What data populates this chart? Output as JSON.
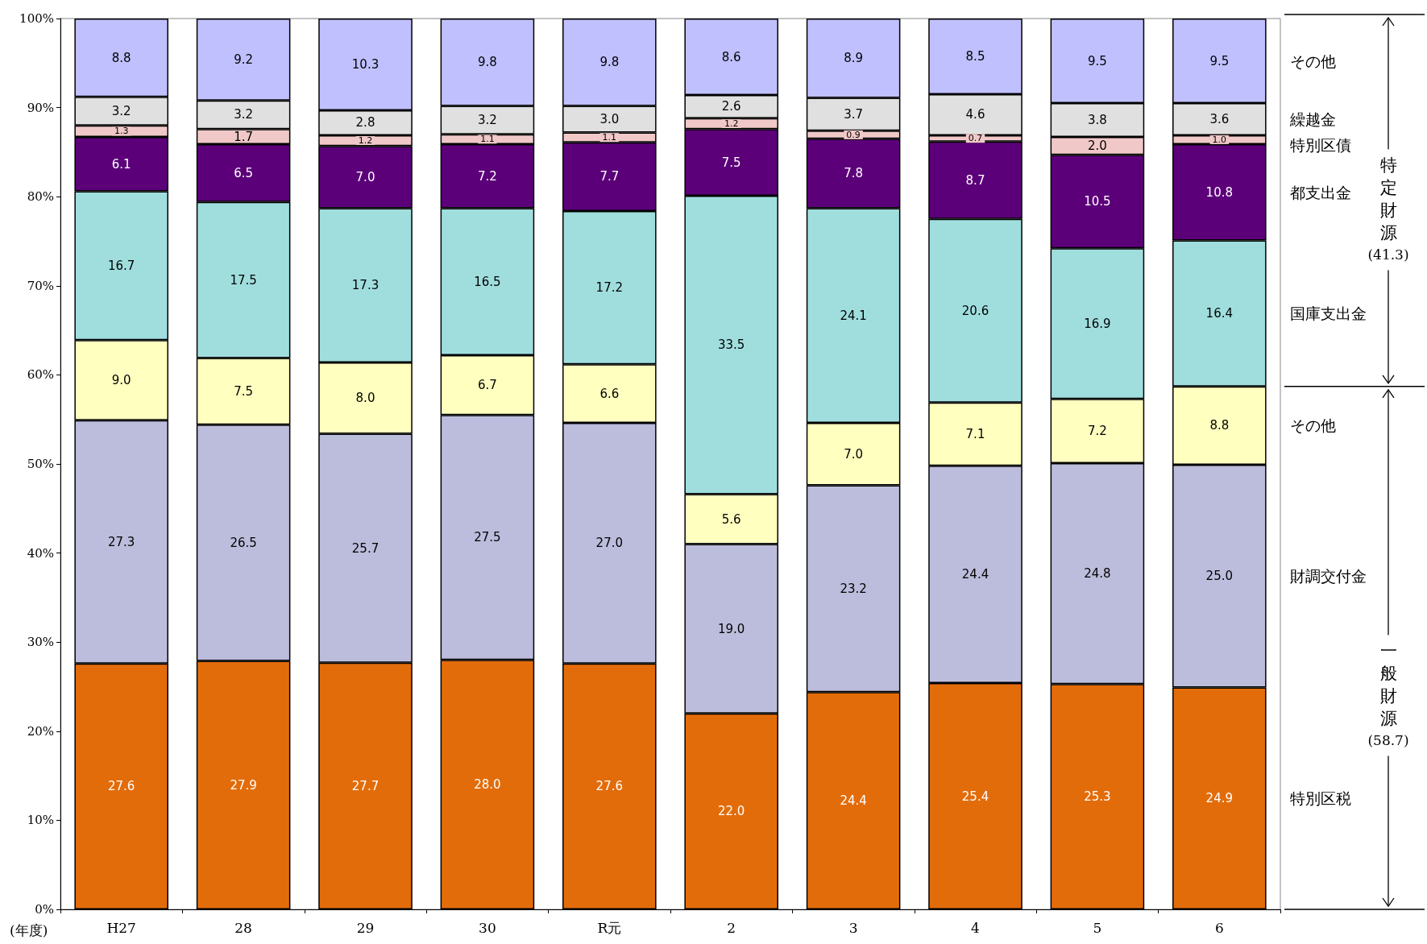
{
  "chart_data": {
    "type": "bar",
    "stacked": true,
    "xlabel": "(年度)",
    "categories": [
      "H27",
      "28",
      "29",
      "30",
      "R元",
      "2",
      "3",
      "4",
      "5",
      "6"
    ],
    "series": [
      {
        "name": "特別区税",
        "color": "#e36c0a",
        "values": [
          27.6,
          27.9,
          27.7,
          28.0,
          27.6,
          22.0,
          24.4,
          25.4,
          25.3,
          24.9
        ],
        "value_labels": [
          "27.6",
          "27.9",
          "27.7",
          "28.0",
          "27.6",
          "22.0",
          "24.4",
          "25.4",
          "25.3",
          "24.9"
        ]
      },
      {
        "name": "財調交付金",
        "color": "#bcbcdc",
        "values": [
          27.3,
          26.5,
          25.7,
          27.5,
          27.0,
          19.0,
          23.2,
          24.4,
          24.8,
          25.0
        ],
        "value_labels": [
          "27.3",
          "26.5",
          "25.7",
          "27.5",
          "27.0",
          "19.0",
          "23.2",
          "24.4",
          "24.8",
          "25.0"
        ]
      },
      {
        "name": "その他",
        "color": "#ffffc0",
        "values": [
          9.0,
          7.5,
          8.0,
          6.7,
          6.6,
          5.6,
          7.0,
          7.1,
          7.2,
          8.8
        ],
        "value_labels": [
          "9.0",
          "7.5",
          "8.0",
          "6.7",
          "6.6",
          "5.6",
          "7.0",
          "7.1",
          "7.2",
          "8.8"
        ]
      },
      {
        "name": "国庫支出金",
        "color": "#a0dede",
        "values": [
          16.7,
          17.5,
          17.3,
          16.5,
          17.2,
          33.5,
          24.1,
          20.6,
          16.9,
          16.4
        ],
        "value_labels": [
          "16.7",
          "17.5",
          "17.3",
          "16.5",
          "17.2",
          "33.5",
          "24.1",
          "20.6",
          "16.9",
          "16.4"
        ]
      },
      {
        "name": "都支出金",
        "color": "#5c007a",
        "values": [
          6.1,
          6.5,
          7.0,
          7.2,
          7.7,
          7.5,
          7.8,
          8.7,
          10.5,
          10.8
        ],
        "value_labels": [
          "6.1",
          "6.5",
          "7.0",
          "7.2",
          "7.7",
          "7.5",
          "7.8",
          "8.7",
          "10.5",
          "10.8"
        ]
      },
      {
        "name": "特別区債",
        "color": "#f0c8c8",
        "values": [
          1.3,
          1.7,
          1.2,
          1.1,
          1.1,
          1.2,
          0.9,
          0.7,
          2.0,
          1.0
        ],
        "value_labels": [
          "1.3",
          "1.7",
          "1.2",
          "1.1",
          "1.1",
          "1.2",
          "0.9",
          "0.7",
          "2.0",
          "1.0"
        ]
      },
      {
        "name": "繰越金",
        "color": "#e0e0e0",
        "values": [
          3.2,
          3.2,
          2.8,
          3.2,
          3.0,
          2.6,
          3.7,
          4.6,
          3.8,
          3.6
        ],
        "value_labels": [
          "3.2",
          "3.2",
          "2.8",
          "3.2",
          "3.0",
          "2.6",
          "3.7",
          "4.6",
          "3.8",
          "3.6"
        ]
      },
      {
        "name": "その他",
        "color": "#c0c0ff",
        "values": [
          8.8,
          9.2,
          10.3,
          9.8,
          9.8,
          8.6,
          8.9,
          8.5,
          9.5,
          9.5
        ],
        "value_labels": [
          "8.8",
          "9.2",
          "10.3",
          "9.8",
          "9.8",
          "8.6",
          "8.9",
          "8.5",
          "9.5",
          "9.5"
        ]
      }
    ],
    "ylim": [
      0,
      100
    ],
    "yticks": [
      {
        "value": 0,
        "label": "0%"
      },
      {
        "value": 10,
        "label": "10%"
      },
      {
        "value": 20,
        "label": "20%"
      },
      {
        "value": 30,
        "label": "30%"
      },
      {
        "value": 40,
        "label": "40%"
      },
      {
        "value": 50,
        "label": "50%"
      },
      {
        "value": 60,
        "label": "60%"
      },
      {
        "value": 70,
        "label": "70%"
      },
      {
        "value": 80,
        "label": "80%"
      },
      {
        "value": 90,
        "label": "90%"
      },
      {
        "value": 100,
        "label": "100%"
      }
    ],
    "grid": false,
    "legend": false,
    "annotations": [
      "特定財源",
      "(41.3)",
      "一般財源",
      "(58.7)"
    ]
  }
}
